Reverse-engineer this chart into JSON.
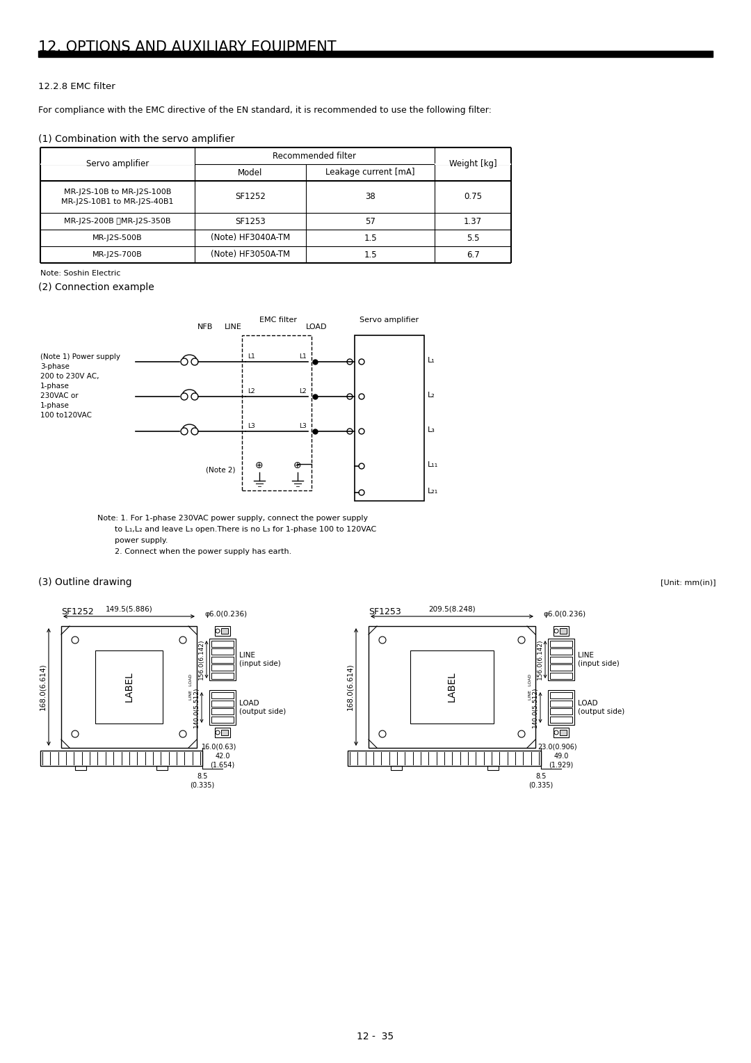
{
  "title": "12. OPTIONS AND AUXILIARY EQUIPMENT",
  "section": "12.2.8 EMC filter",
  "intro_text": "For compliance with the EMC directive of the EN standard, it is recommended to use the following filter:",
  "subsection1": "(1) Combination with the servo amplifier",
  "subsection2": "(2) Connection example",
  "subsection3": "(3) Outline drawing",
  "table_rows": [
    [
      "MR-J2S-10B to MR-J2S-100B\nMR-J2S-10B1 to MR-J2S-40B1",
      "SF1252",
      "38",
      "0.75"
    ],
    [
      "MR-J2S-200B ・MR-J2S-350B",
      "SF1253",
      "57",
      "1.37"
    ],
    [
      "MR-J2S-500B",
      "(Note) HF3040A-TM",
      "1.5",
      "5.5"
    ],
    [
      "MR-J2S-700B",
      "(Note) HF3050A-TM",
      "1.5",
      "6.7"
    ]
  ],
  "note_table": "Note: Soshin Electric",
  "page_number": "12 -  35",
  "background_color": "#ffffff",
  "text_color": "#000000"
}
